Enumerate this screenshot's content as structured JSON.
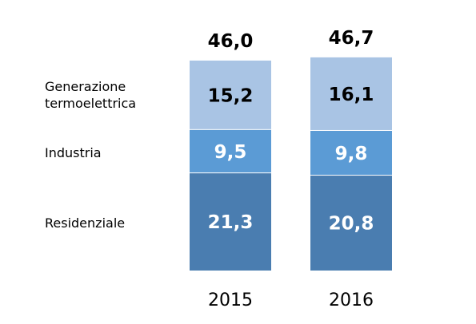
{
  "chart_data": {
    "type": "bar",
    "stacked": true,
    "categories": [
      "2015",
      "2016"
    ],
    "totals": [
      "46,0",
      "46,7"
    ],
    "series": [
      {
        "name": "Residenziale",
        "values": [
          21.3,
          20.8
        ],
        "labels": [
          "21,3",
          "20,8"
        ],
        "color": "#4a7db0",
        "label_color": "#ffffff"
      },
      {
        "name": "Industria",
        "values": [
          9.5,
          9.8
        ],
        "labels": [
          "9,5",
          "9,8"
        ],
        "color": "#5b9bd5",
        "label_color": "#ffffff"
      },
      {
        "name": "Generazione termoelettrica",
        "values": [
          15.2,
          16.1
        ],
        "labels": [
          "15,2",
          "16,1"
        ],
        "color": "#a9c4e4",
        "label_color": "#000000"
      }
    ],
    "legend_lines": [
      [
        "Residenziale"
      ],
      [
        "Industria"
      ],
      [
        "Generazione",
        "termoelettrica"
      ]
    ],
    "legend_position": "left",
    "grid": false
  }
}
